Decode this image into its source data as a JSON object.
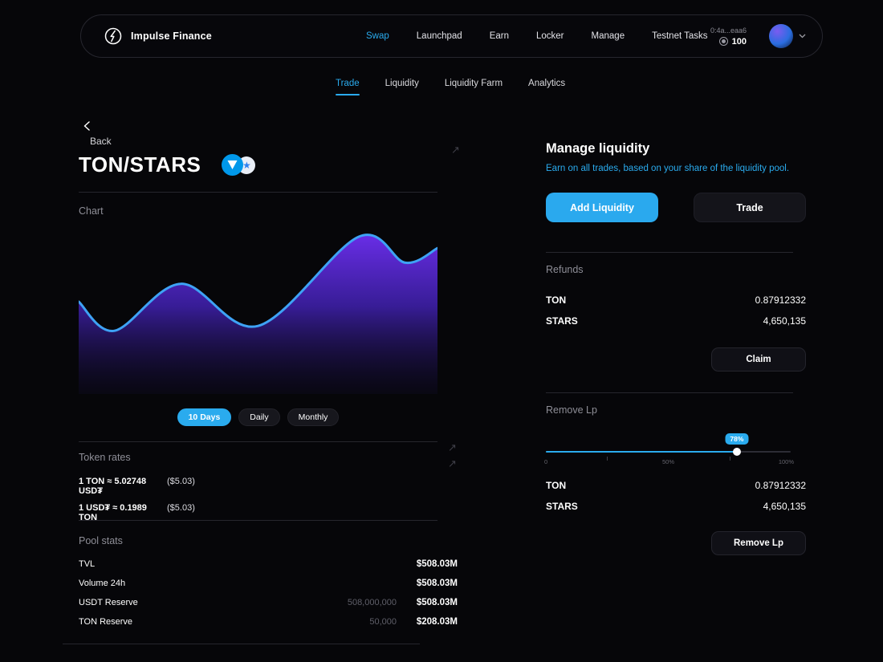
{
  "colors": {
    "accent": "#2aabee"
  },
  "navbar": {
    "brand": "Impulse Finance",
    "items": [
      {
        "label": "Swap",
        "active": true
      },
      {
        "label": "Launchpad",
        "active": false
      },
      {
        "label": "Earn",
        "active": false
      },
      {
        "label": "Locker",
        "active": false
      },
      {
        "label": "Manage",
        "active": false
      },
      {
        "label": "Testnet Tasks",
        "active": false
      }
    ],
    "wallet": {
      "address": "0:4a...eaa6",
      "balance": "100"
    }
  },
  "tabs": [
    {
      "label": "Trade",
      "active": true
    },
    {
      "label": "Liquidity",
      "active": false
    },
    {
      "label": "Liquidity Farm",
      "active": false
    },
    {
      "label": "Analytics",
      "active": false
    }
  ],
  "left": {
    "back_label": "Back",
    "pair": "TON/STARS",
    "chart_label": "Chart",
    "ranges": [
      {
        "label": "10 Days",
        "active": true
      },
      {
        "label": "Daily",
        "active": false
      },
      {
        "label": "Monthly",
        "active": false
      }
    ],
    "token_rates": {
      "title": "Token rates",
      "rows": [
        {
          "rate": "1 TON ≈ 5.02748 USD₮",
          "usd": "($5.03)"
        },
        {
          "rate": "1 USD₮ ≈ 0.1989 TON",
          "usd": "($5.03)"
        }
      ]
    },
    "pool_stats": {
      "title": "Pool stats",
      "rows": [
        {
          "label": "TVL",
          "raw": "",
          "usd": "$508.03M"
        },
        {
          "label": "Volume 24h",
          "raw": "",
          "usd": "$508.03M"
        },
        {
          "label": "USDT Reserve",
          "raw": "508,000,000",
          "usd": "$508.03M"
        },
        {
          "label": "TON Reserve",
          "raw": "50,000",
          "usd": "$208.03M"
        }
      ]
    }
  },
  "right": {
    "title": "Manage liquidity",
    "subtitle": "Earn on all trades, based on your share of the liquidity pool.",
    "add_liquidity_label": "Add Liquidity",
    "trade_label": "Trade",
    "refunds": {
      "title": "Refunds",
      "rows": [
        {
          "label": "TON",
          "value": "0.87912332"
        },
        {
          "label": "STARS",
          "value": "4,650,135"
        }
      ],
      "claim_label": "Claim"
    },
    "remove": {
      "title": "Remove Lp",
      "percent": 78,
      "percent_label": "78%",
      "tick_labels": [
        "0",
        "50%",
        "100%"
      ],
      "rows": [
        {
          "label": "TON",
          "value": "0.87912332"
        },
        {
          "label": "STARS",
          "value": "4,650,135"
        }
      ],
      "button_label": "Remove Lp"
    }
  },
  "chart_data": {
    "type": "area",
    "title": "Chart",
    "x_percent": [
      0,
      10,
      28.5,
      50,
      78,
      91,
      100
    ],
    "values": [
      56,
      38,
      67,
      41,
      96,
      80,
      89
    ],
    "ylim": [
      0,
      100
    ],
    "line_color": "#3ea2f5",
    "fill_top_color": "#6d2ff0",
    "axes_visible": false,
    "grid": false
  }
}
